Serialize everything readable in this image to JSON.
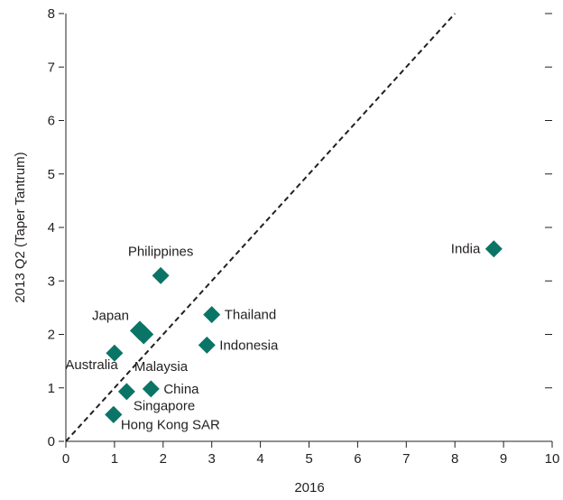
{
  "chart_data": {
    "type": "scatter",
    "title": "",
    "xlabel": "2016",
    "ylabel": "2013 Q2 (Taper Tantrum)",
    "xlim": [
      0,
      10
    ],
    "ylim": [
      0,
      8
    ],
    "x_ticks": [
      "0",
      "1",
      "2",
      "3",
      "4",
      "5",
      "6",
      "7",
      "8",
      "9",
      "10"
    ],
    "y_ticks": [
      "0",
      "1",
      "2",
      "3",
      "4",
      "5",
      "6",
      "7",
      "8"
    ],
    "grid": false,
    "marker_color": "#0a7566",
    "reference_line": "45-degree line (y = x), dashed",
    "points": [
      {
        "label": "India",
        "x": 8.8,
        "y": 3.6
      },
      {
        "label": "Philippines",
        "x": 1.95,
        "y": 3.1
      },
      {
        "label": "Thailand",
        "x": 3.0,
        "y": 2.37
      },
      {
        "label": "Japan",
        "x": 1.52,
        "y": 2.07
      },
      {
        "label": "",
        "x": 1.6,
        "y": 2.0
      },
      {
        "label": "Indonesia",
        "x": 2.9,
        "y": 1.8
      },
      {
        "label": "Malaysia",
        "x": 1.0,
        "y": 1.65
      },
      {
        "label": "China",
        "x": 1.75,
        "y": 0.98
      },
      {
        "label": "Australia",
        "x": 1.25,
        "y": 0.93
      },
      {
        "label": "Singapore",
        "x": 0.98,
        "y": 0.5
      },
      {
        "label": "Hong Kong SAR",
        "x": 0.98,
        "y": 0.5
      }
    ]
  }
}
